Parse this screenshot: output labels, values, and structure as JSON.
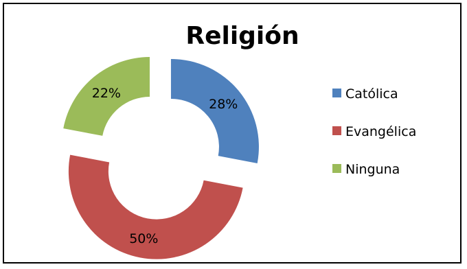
{
  "chart_data": {
    "type": "pie",
    "style": "exploded-donut",
    "title": "Religión",
    "categories": [
      "Católica",
      "Evangélica",
      "Ninguna"
    ],
    "values": [
      28,
      50,
      22
    ],
    "labels": [
      "28%",
      "50%",
      "22%"
    ],
    "colors": [
      "#4F81BD",
      "#C0504D",
      "#9BBB59"
    ],
    "legend_position": "right"
  }
}
